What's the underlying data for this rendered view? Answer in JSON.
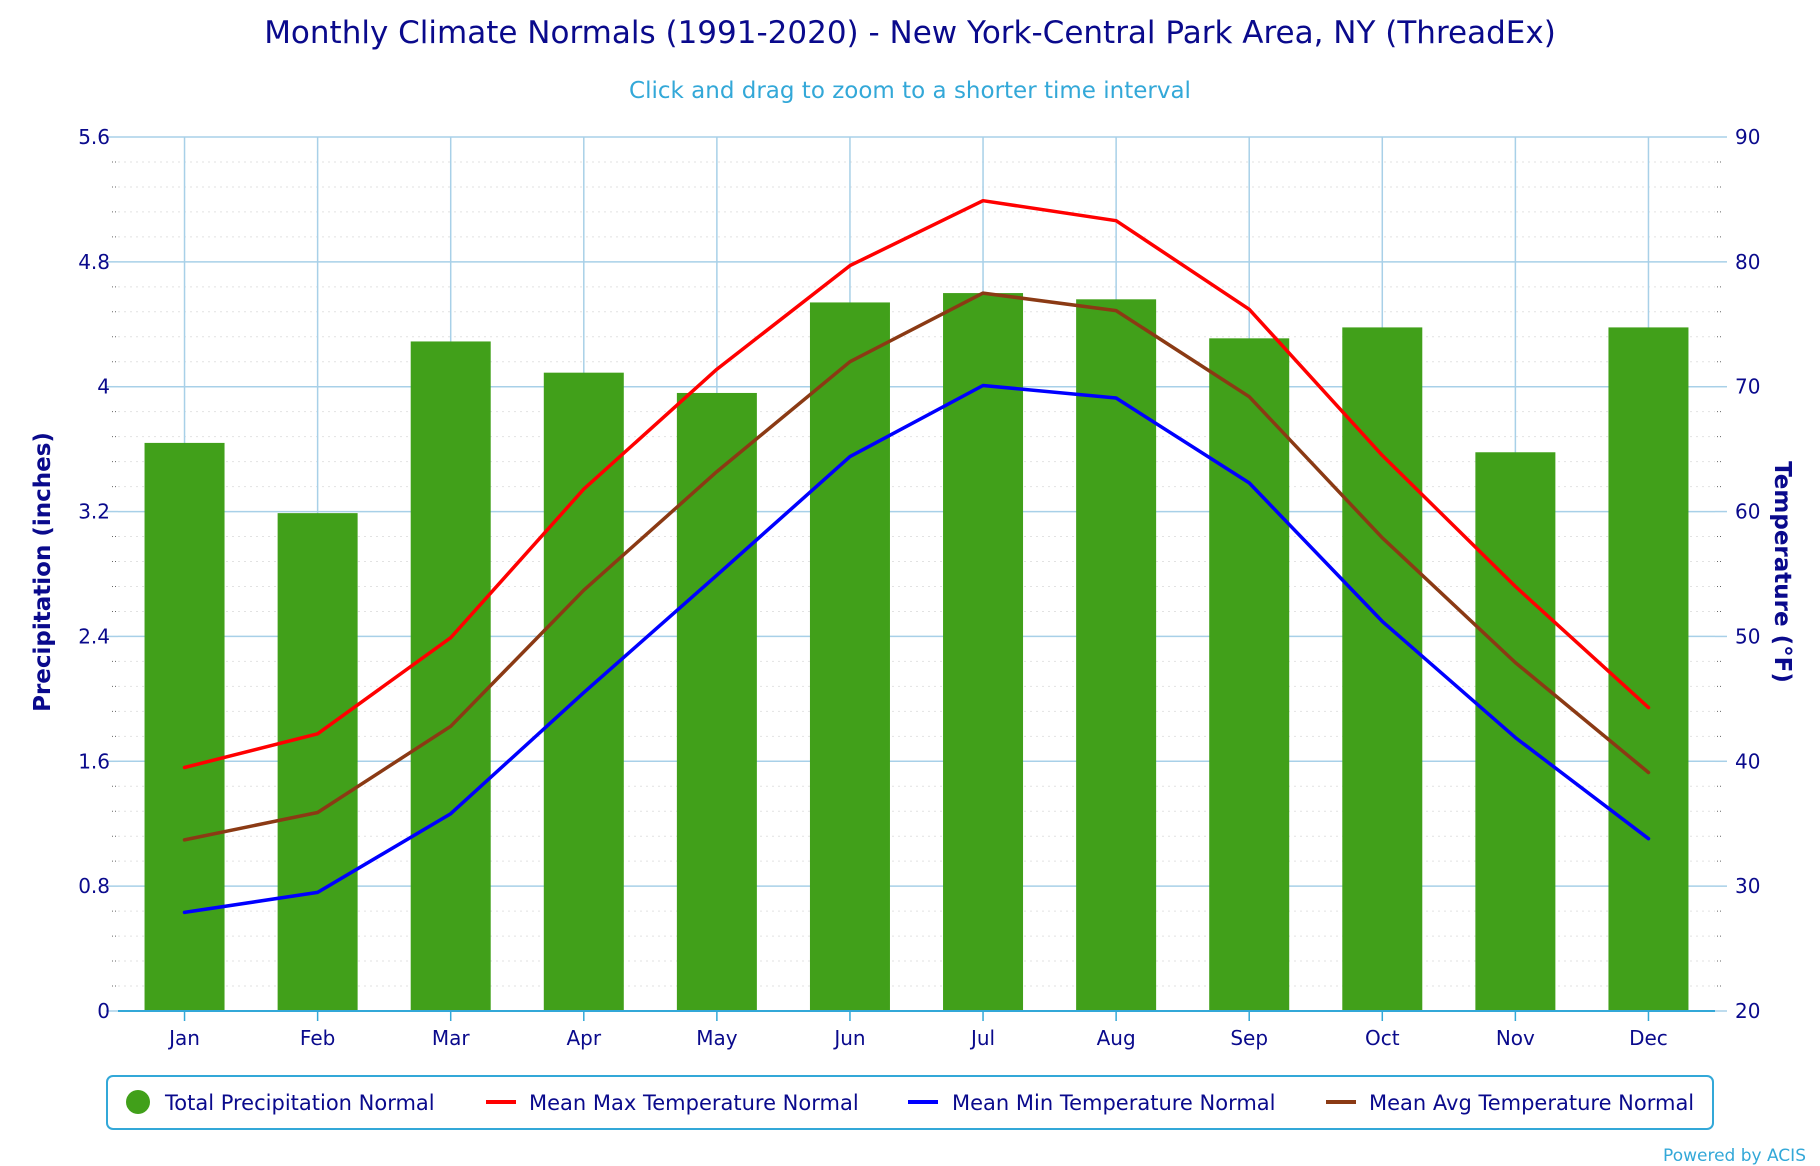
{
  "chart_data": {
    "type": "bar+line",
    "title": "Monthly Climate Normals (1991-2020) - New York-Central Park Area, NY (ThreadEx)",
    "subtitle": "Click and drag to zoom to a shorter time interval",
    "categories": [
      "Jan",
      "Feb",
      "Mar",
      "Apr",
      "May",
      "Jun",
      "Jul",
      "Aug",
      "Sep",
      "Oct",
      "Nov",
      "Dec"
    ],
    "left_axis": {
      "label": "Precipitation (inches)",
      "range": [
        0,
        5.6
      ],
      "ticks": [
        "0",
        "0.8",
        "1.6",
        "2.4",
        "3.2",
        "4",
        "4.8",
        "5.6"
      ]
    },
    "right_axis": {
      "label": "Temperature (°F)",
      "range": [
        20,
        90
      ],
      "ticks": [
        "20",
        "30",
        "40",
        "50",
        "60",
        "70",
        "80",
        "90"
      ]
    },
    "series": [
      {
        "name": "Total Precipitation Normal",
        "type": "bar",
        "axis": "left",
        "color": "#41a01a",
        "values": [
          3.64,
          3.19,
          4.29,
          4.09,
          3.96,
          4.54,
          4.6,
          4.56,
          4.31,
          4.38,
          3.58,
          4.38
        ]
      },
      {
        "name": "Mean Max Temperature Normal",
        "type": "line",
        "axis": "right",
        "color": "#ff0000",
        "values": [
          39.5,
          42.2,
          49.9,
          61.8,
          71.4,
          79.7,
          84.9,
          83.3,
          76.2,
          64.5,
          54.0,
          44.3
        ]
      },
      {
        "name": "Mean Min Temperature Normal",
        "type": "line",
        "axis": "right",
        "color": "#0000ff",
        "values": [
          27.9,
          29.5,
          35.8,
          45.5,
          54.9,
          64.4,
          70.1,
          69.1,
          62.3,
          51.2,
          41.9,
          33.8
        ]
      },
      {
        "name": "Mean Avg Temperature Normal",
        "type": "line",
        "axis": "right",
        "color": "#8b3a14",
        "values": [
          33.7,
          35.9,
          42.8,
          53.7,
          63.2,
          72.0,
          77.5,
          76.1,
          69.2,
          57.9,
          47.9,
          39.1
        ]
      }
    ],
    "legend_position": "bottom-center",
    "grid": true
  },
  "credit": "Powered by ACIS",
  "colors": {
    "text": "#0a0a8c",
    "subtitle": "#33a8d8",
    "grid": "#a8d0e8",
    "legend_border": "#33a8d8"
  }
}
